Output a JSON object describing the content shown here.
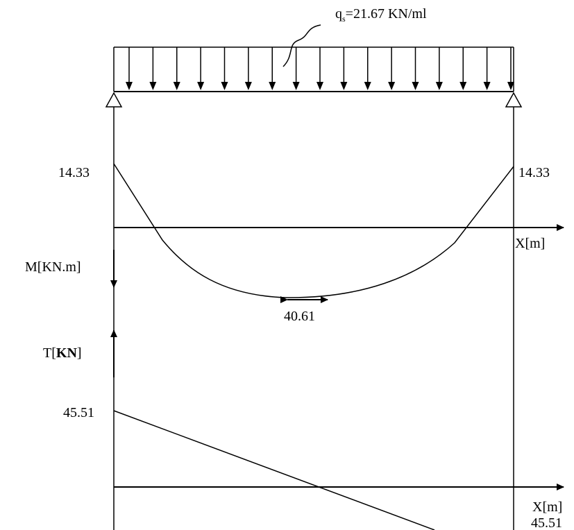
{
  "load": {
    "q_sym": "q",
    "q_sub": "s",
    "q_value": "=21.67 KN/ml"
  },
  "moment": {
    "axis_label": "M[KN.m]",
    "x_label": "X[m]",
    "left_value": "14.33",
    "right_value": "14.33",
    "mid_value": "40.61"
  },
  "shear": {
    "axis_label_prefix": "T[",
    "axis_label_unit": "KN",
    "axis_label_suffix": "]",
    "x_label": "X[m]",
    "left_value": "45.51",
    "right_value": "45.51"
  }
}
